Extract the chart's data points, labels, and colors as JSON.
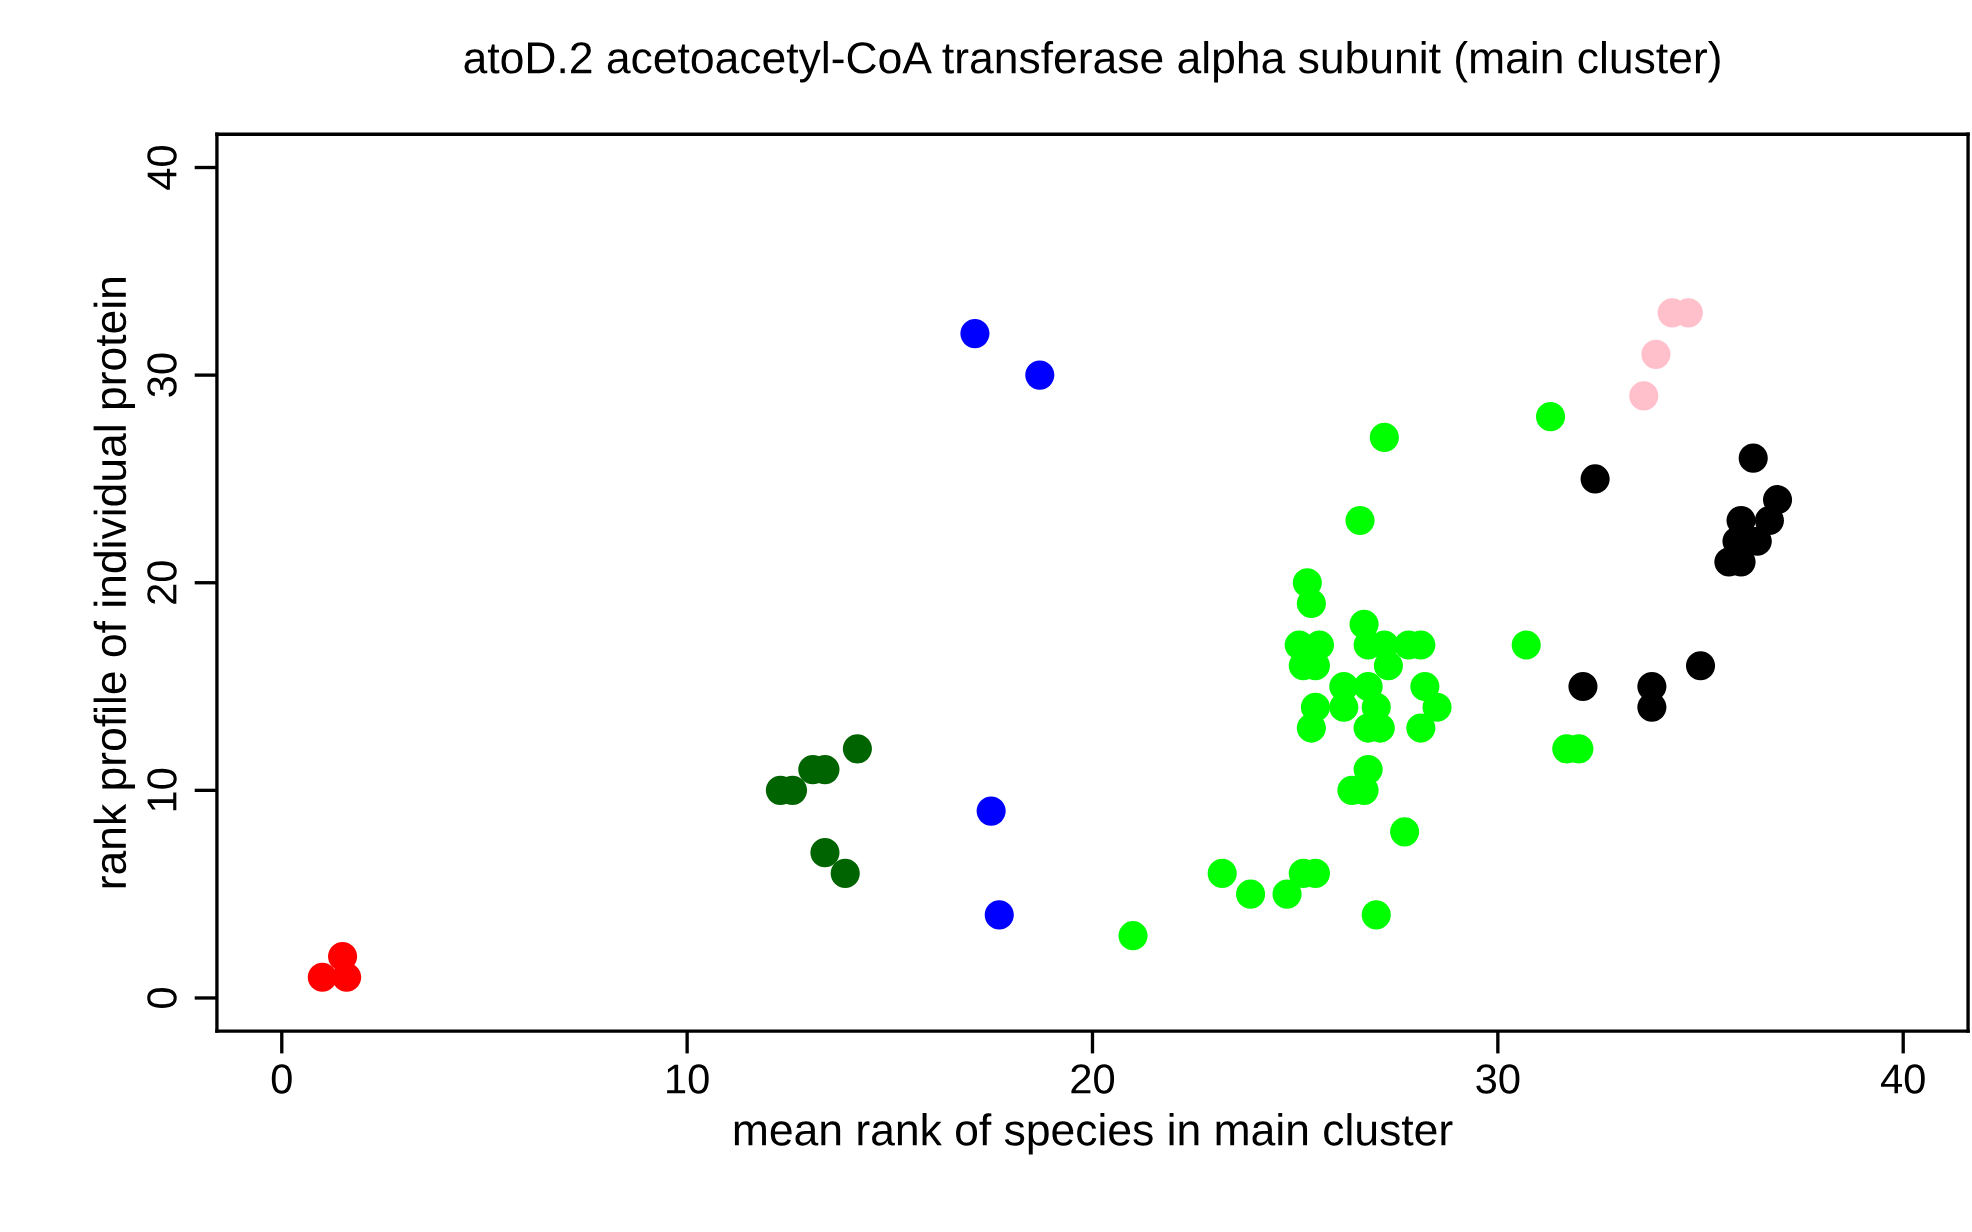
{
  "chart_data": {
    "type": "scatter",
    "title": "atoD.2 acetoacetyl-CoA transferase alpha subunit (main cluster)",
    "xlabel": "mean rank of species in main cluster",
    "ylabel": "rank profile of individual protein",
    "xlim": [
      -1.6,
      41.6
    ],
    "ylim": [
      -1.6,
      41.6
    ],
    "xticks": [
      0,
      10,
      20,
      30,
      40
    ],
    "yticks": [
      0,
      10,
      20,
      30,
      40
    ],
    "grid": false,
    "legend": false,
    "marker": "circle",
    "series": [
      {
        "color": "#ff0000",
        "x": [
          1.0,
          1.5,
          1.6
        ],
        "values": [
          1,
          2,
          1
        ]
      },
      {
        "color": "#0000ff",
        "x": [
          17.1,
          18.7,
          17.5,
          17.7
        ],
        "values": [
          32,
          30,
          9,
          4
        ]
      },
      {
        "color": "#006400",
        "x": [
          12.3,
          12.6,
          13.1,
          13.4,
          14.2,
          13.4,
          13.9
        ],
        "values": [
          10,
          10,
          11,
          11,
          12,
          7,
          6
        ]
      },
      {
        "color": "#00ff00",
        "x": [
          27.2,
          31.3,
          26.6,
          25.3,
          25.4,
          26.7,
          25.1,
          25.6,
          26.8,
          27.2,
          27.8,
          28.1,
          25.2,
          25.5,
          27.3,
          30.7,
          26.2,
          26.8,
          28.2,
          25.5,
          26.2,
          27.0,
          28.5,
          25.4,
          26.8,
          27.1,
          28.1,
          26.8,
          26.4,
          26.7,
          27.7,
          31.7,
          32.0,
          23.2,
          23.9,
          24.8,
          25.2,
          25.5,
          27.0,
          21.0
        ],
        "values": [
          27,
          28,
          23,
          20,
          19,
          18,
          17,
          17,
          17,
          17,
          17,
          17,
          16,
          16,
          16,
          17,
          15,
          15,
          15,
          14,
          14,
          14,
          14,
          13,
          13,
          13,
          13,
          11,
          10,
          10,
          8,
          12,
          12,
          6,
          5,
          5,
          6,
          6,
          4,
          3
        ]
      },
      {
        "color": "#000000",
        "x": [
          32.4,
          36.3,
          36.9,
          36.0,
          36.7,
          35.9,
          36.4,
          35.7,
          36.0,
          32.1,
          33.8,
          33.8,
          35.0
        ],
        "values": [
          25,
          26,
          24,
          23,
          23,
          22,
          22,
          21,
          21,
          15,
          15,
          14,
          16
        ]
      },
      {
        "color": "#ffc0cb",
        "x": [
          34.3,
          34.7,
          33.9,
          33.6
        ],
        "values": [
          33,
          33,
          31,
          29
        ]
      }
    ]
  }
}
